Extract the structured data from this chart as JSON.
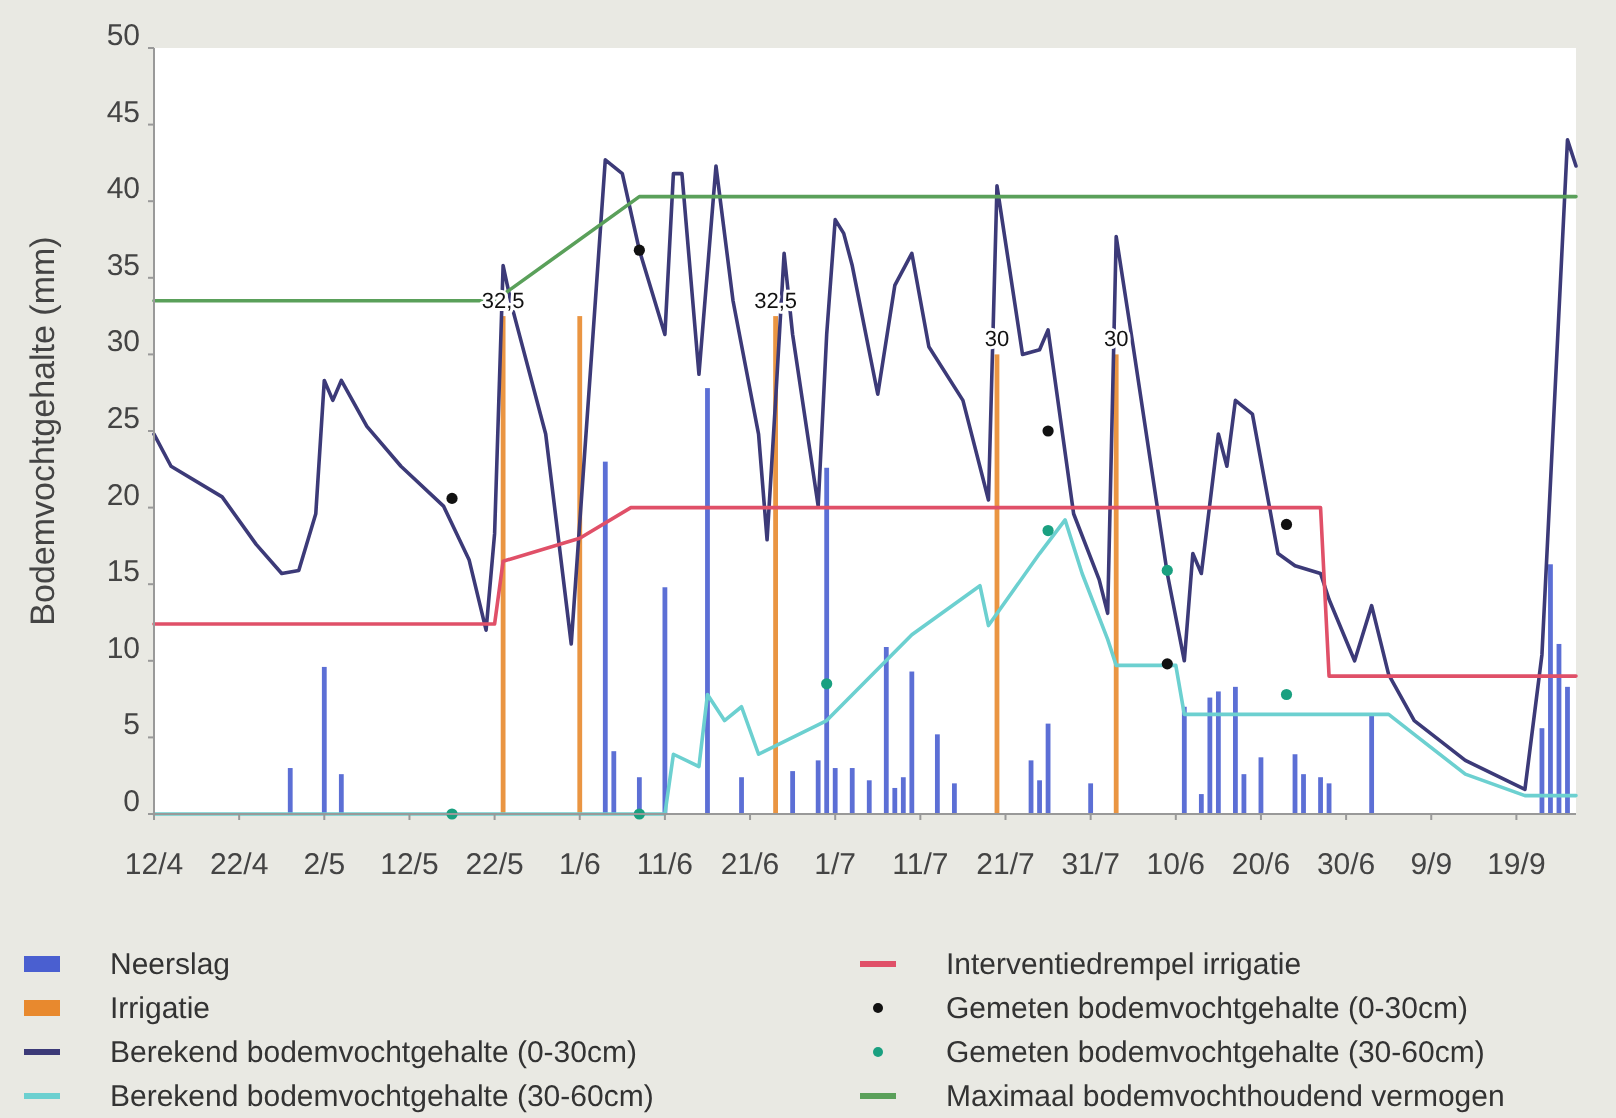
{
  "chart_data": {
    "type": "line",
    "ylabel": "Bodemvochtgehalte (mm)",
    "xlim": [
      "--04-12",
      "--09-26"
    ],
    "ylim": [
      0,
      50
    ],
    "xticks": [
      {
        "value": "--04-12",
        "label": "12/4"
      },
      {
        "value": "--04-22",
        "label": "22/4"
      },
      {
        "value": "--05-02",
        "label": "2/5"
      },
      {
        "value": "--05-12",
        "label": "12/5"
      },
      {
        "value": "--05-22",
        "label": "22/5"
      },
      {
        "value": "--06-01",
        "label": "1/6"
      },
      {
        "value": "--06-11",
        "label": "11/6"
      },
      {
        "value": "--06-21",
        "label": "21/6"
      },
      {
        "value": "--07-01",
        "label": "1/7"
      },
      {
        "value": "--07-11",
        "label": "11/7"
      },
      {
        "value": "--07-21",
        "label": "21/7"
      },
      {
        "value": "--07-31",
        "label": "31/7"
      },
      {
        "value": "--08-10",
        "label": "10/6"
      },
      {
        "value": "--08-20",
        "label": "20/6"
      },
      {
        "value": "--08-30",
        "label": "30/6"
      },
      {
        "value": "--09-09",
        "label": "9/9"
      },
      {
        "value": "--09-19",
        "label": "19/9"
      }
    ],
    "yticks": [
      0,
      5,
      10,
      15,
      20,
      25,
      30,
      35,
      40,
      45,
      50
    ],
    "legend": "bottom",
    "series": [
      {
        "name": "Neerslag",
        "type": "bar",
        "color": "#4a5fd0",
        "x": [
          "--04-28",
          "--05-02",
          "--05-04",
          "--06-04",
          "--06-05",
          "--06-08",
          "--06-11",
          "--06-16",
          "--06-20",
          "--06-26",
          "--06-29",
          "--06-30",
          "--07-01",
          "--07-03",
          "--07-05",
          "--07-07",
          "--07-08",
          "--07-09",
          "--07-10",
          "--07-13",
          "--07-15",
          "--07-24",
          "--07-25",
          "--07-26",
          "--07-31",
          "--08-11",
          "--08-13",
          "--08-14",
          "--08-15",
          "--08-17",
          "--08-18",
          "--08-20",
          "--08-24",
          "--08-25",
          "--08-27",
          "--08-28",
          "--09-02",
          "--09-22",
          "--09-23",
          "--09-24",
          "--09-25"
        ],
        "values": [
          3,
          9.6,
          2.6,
          23,
          4.1,
          2.4,
          14.8,
          27.8,
          2.4,
          2.8,
          3.5,
          22.6,
          3,
          3,
          2.2,
          10.9,
          1.7,
          2.4,
          9.3,
          5.2,
          2,
          3.5,
          2.2,
          5.9,
          2,
          7,
          1.3,
          7.6,
          8,
          8.3,
          2.6,
          3.7,
          3.9,
          2.6,
          2.4,
          2,
          6.5,
          5.6,
          16.3,
          11.1,
          8.3
        ]
      },
      {
        "name": "Irrigatie",
        "type": "bar",
        "color": "#e8892e",
        "x": [
          "--05-23",
          "--06-01",
          "--06-24",
          "--07-20",
          "--08-03"
        ],
        "values": [
          32.5,
          32.5,
          32.5,
          30,
          30
        ],
        "value_labels": [
          "32,5",
          null,
          "32,5",
          "30",
          "30"
        ]
      },
      {
        "name": "Berekend bodemvochtgehalte (0-30cm)",
        "color": "#3c3a78",
        "x": [
          "--04-12",
          "--04-14",
          "--04-20",
          "--04-24",
          "--04-27",
          "--04-29",
          "--05-01",
          "--05-02",
          "--05-03",
          "--05-04",
          "--05-07",
          "--05-11",
          "--05-16",
          "--05-19",
          "--05-21",
          "--05-22",
          "--05-23",
          "--05-24",
          "--05-28",
          "--05-31",
          "--06-04",
          "--06-06",
          "--06-08",
          "--06-11",
          "--06-12",
          "--06-13",
          "--06-15",
          "--06-17",
          "--06-19",
          "--06-22",
          "--06-23",
          "--06-24",
          "--06-25",
          "--06-26",
          "--06-29",
          "--06-30",
          "--07-01",
          "--07-02",
          "--07-03",
          "--07-06",
          "--07-08",
          "--07-10",
          "--07-12",
          "--07-16",
          "--07-19",
          "--07-20",
          "--07-23",
          "--07-25",
          "--07-26",
          "--07-29",
          "--08-01",
          "--08-02",
          "--08-03",
          "--08-05",
          "--08-09",
          "--08-11",
          "--08-12",
          "--08-13",
          "--08-15",
          "--08-16",
          "--08-17",
          "--08-19",
          "--08-22",
          "--08-24",
          "--08-27",
          "--08-28",
          "--08-31",
          "--09-02",
          "--09-04",
          "--09-07",
          "--09-13",
          "--09-20",
          "--09-22",
          "--09-25",
          "--09-26"
        ],
        "values": [
          24.8,
          22.7,
          20.7,
          17.6,
          15.7,
          15.9,
          19.6,
          28.3,
          27,
          28.3,
          25.3,
          22.7,
          20.1,
          16.6,
          12,
          18.3,
          35.8,
          33.2,
          24.8,
          11.1,
          42.7,
          41.8,
          36.8,
          31.3,
          41.8,
          41.8,
          28.7,
          42.3,
          33.5,
          24.8,
          17.9,
          27,
          36.6,
          31.3,
          20.1,
          31.3,
          38.8,
          37.9,
          35.8,
          27.4,
          34.5,
          36.6,
          30.5,
          27,
          20.5,
          41,
          30,
          30.3,
          31.6,
          19.6,
          15.3,
          13.1,
          37.7,
          30.5,
          15.7,
          10,
          17,
          15.7,
          24.8,
          22.7,
          27,
          26.1,
          17,
          16.2,
          15.7,
          14,
          10,
          13.6,
          9.1,
          6.1,
          3.5,
          1.6,
          10.4,
          44,
          42.3
        ]
      },
      {
        "name": "Berekend bodemvochtgehalte (30-60cm)",
        "color": "#6cd0d0",
        "x": [
          "--04-12",
          "--06-11",
          "--06-12",
          "--06-15",
          "--06-16",
          "--06-18",
          "--06-20",
          "--06-22",
          "--06-30",
          "--07-10",
          "--07-18",
          "--07-19",
          "--07-25",
          "--07-28",
          "--07-30",
          "--08-02",
          "--08-03",
          "--08-10",
          "--08-11",
          "--09-04",
          "--09-07",
          "--09-13",
          "--09-20",
          "--09-26"
        ],
        "values": [
          0,
          0,
          3.9,
          3.1,
          7.8,
          6.1,
          7,
          3.9,
          6.1,
          11.7,
          14.9,
          12.3,
          17,
          19.2,
          15.7,
          11.4,
          9.7,
          9.7,
          6.5,
          6.5,
          5.2,
          2.6,
          1.2,
          1.2
        ]
      },
      {
        "name": "Interventiedrempel irrigatie",
        "color": "#e05068",
        "x": [
          "--04-12",
          "--05-22",
          "--05-23",
          "--06-01",
          "--06-07",
          "--08-27",
          "--08-28",
          "--09-26"
        ],
        "values": [
          12.4,
          12.4,
          16.5,
          18,
          20,
          20,
          9,
          9
        ]
      },
      {
        "name": "Gemeten bodemvochtgehalte (0-30cm)",
        "type": "scatter",
        "marker": "circle",
        "color": "#111111",
        "x": [
          "--05-17",
          "--06-08",
          "--07-26",
          "--08-09",
          "--08-23"
        ],
        "values": [
          20.6,
          36.8,
          25,
          9.8,
          18.9
        ]
      },
      {
        "name": "Gemeten bodemvochtgehalte (30-60cm)",
        "type": "scatter",
        "marker": "circle",
        "color": "#1aa080",
        "x": [
          "--05-17",
          "--06-08",
          "--06-30",
          "--07-26",
          "--08-09",
          "--08-23"
        ],
        "values": [
          0,
          0,
          8.5,
          18.5,
          15.9,
          7.8
        ]
      },
      {
        "name": "Maximaal bodemvochthoudend vermogen",
        "color": "#5aa05a",
        "x": [
          "--04-12",
          "--05-22",
          "--06-08",
          "--09-26"
        ],
        "values": [
          33.5,
          33.5,
          40.3,
          40.3
        ]
      }
    ]
  }
}
